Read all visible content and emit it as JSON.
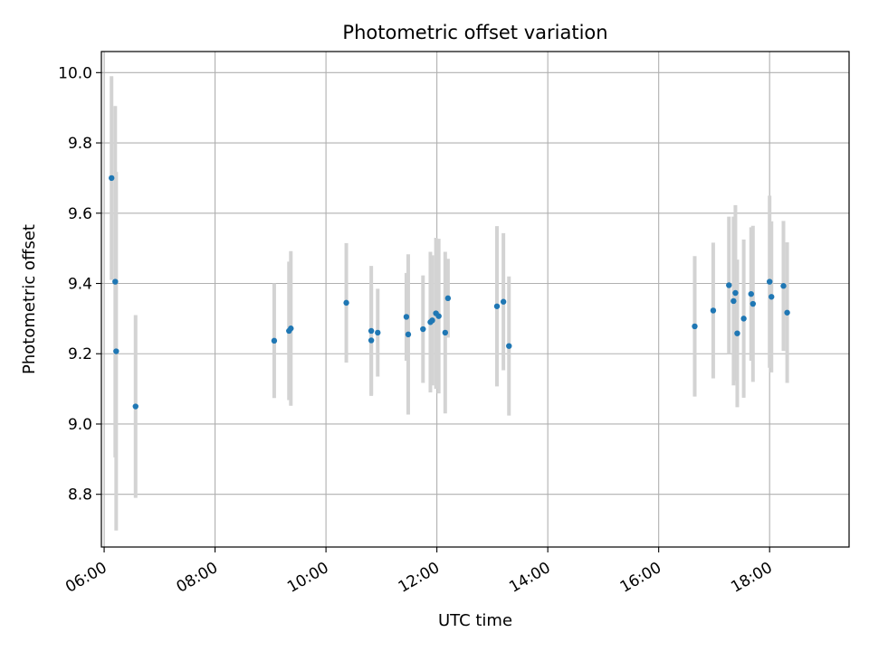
{
  "chart_data": {
    "type": "scatter",
    "title": "Photometric offset variation",
    "xlabel": "UTC time",
    "ylabel": "Photometric offset",
    "x_ticks": [
      "06:00",
      "08:00",
      "10:00",
      "12:00",
      "14:00",
      "16:00",
      "18:00"
    ],
    "y_ticks": [
      "8.8",
      "9.0",
      "9.2",
      "9.4",
      "9.6",
      "9.8",
      "10.0"
    ],
    "xlim": [
      "05:57",
      "19:26"
    ],
    "ylim": [
      8.65,
      10.06
    ],
    "grid": true,
    "marker_color": "#1f77b4",
    "errorbar_color": "#d3d3d3",
    "series": [
      {
        "points": [
          {
            "x": "06:08",
            "y": 9.7,
            "yerr": 0.29
          },
          {
            "x": "06:12",
            "y": 9.405,
            "yerr": 0.5
          },
          {
            "x": "06:13",
            "y": 9.207,
            "yerr": 0.51
          },
          {
            "x": "06:34",
            "y": 9.05,
            "yerr": 0.26
          },
          {
            "x": "09:04",
            "y": 9.237,
            "yerr": 0.163
          },
          {
            "x": "09:20",
            "y": 9.265,
            "yerr": 0.197
          },
          {
            "x": "09:22",
            "y": 9.272,
            "yerr": 0.22
          },
          {
            "x": "10:22",
            "y": 9.345,
            "yerr": 0.17
          },
          {
            "x": "10:49",
            "y": 9.265,
            "yerr": 0.185
          },
          {
            "x": "10:49",
            "y": 9.238,
            "yerr": 0.155
          },
          {
            "x": "10:56",
            "y": 9.26,
            "yerr": 0.125
          },
          {
            "x": "11:27",
            "y": 9.305,
            "yerr": 0.125
          },
          {
            "x": "11:29",
            "y": 9.255,
            "yerr": 0.228
          },
          {
            "x": "11:45",
            "y": 9.27,
            "yerr": 0.153
          },
          {
            "x": "11:53",
            "y": 9.29,
            "yerr": 0.2
          },
          {
            "x": "11:55",
            "y": 9.295,
            "yerr": 0.185
          },
          {
            "x": "11:59",
            "y": 9.315,
            "yerr": 0.215
          },
          {
            "x": "12:02",
            "y": 9.307,
            "yerr": 0.22
          },
          {
            "x": "12:09",
            "y": 9.26,
            "yerr": 0.23
          },
          {
            "x": "12:12",
            "y": 9.358,
            "yerr": 0.112
          },
          {
            "x": "13:05",
            "y": 9.335,
            "yerr": 0.228
          },
          {
            "x": "13:12",
            "y": 9.348,
            "yerr": 0.195
          },
          {
            "x": "13:18",
            "y": 9.222,
            "yerr": 0.198
          },
          {
            "x": "16:39",
            "y": 9.278,
            "yerr": 0.2
          },
          {
            "x": "16:59",
            "y": 9.323,
            "yerr": 0.193
          },
          {
            "x": "17:16",
            "y": 9.395,
            "yerr": 0.195
          },
          {
            "x": "17:21",
            "y": 9.35,
            "yerr": 0.24
          },
          {
            "x": "17:23",
            "y": 9.373,
            "yerr": 0.25
          },
          {
            "x": "17:25",
            "y": 9.258,
            "yerr": 0.21
          },
          {
            "x": "17:32",
            "y": 9.3,
            "yerr": 0.225
          },
          {
            "x": "17:40",
            "y": 9.37,
            "yerr": 0.19
          },
          {
            "x": "17:42",
            "y": 9.342,
            "yerr": 0.222
          },
          {
            "x": "18:00",
            "y": 9.405,
            "yerr": 0.245
          },
          {
            "x": "18:02",
            "y": 9.362,
            "yerr": 0.215
          },
          {
            "x": "18:15",
            "y": 9.393,
            "yerr": 0.185
          },
          {
            "x": "18:19",
            "y": 9.317,
            "yerr": 0.2
          }
        ]
      }
    ]
  }
}
